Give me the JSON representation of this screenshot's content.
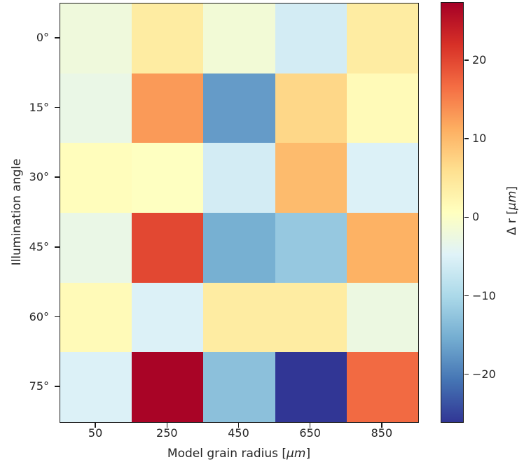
{
  "figure": {
    "background": "#ffffff",
    "spine_color": "#1a1a1a",
    "text_color": "#262626"
  },
  "chart_data": {
    "type": "heatmap",
    "title": "",
    "xlabel": "Model grain radius [μm]",
    "ylabel": "Illumination angle",
    "xlabel_parts": {
      "prefix": "Model grain radius [",
      "unit": "μm",
      "suffix": "]"
    },
    "x_categories": [
      "50",
      "250",
      "450",
      "650",
      "850"
    ],
    "y_categories": [
      "0°",
      "15°",
      "30°",
      "45°",
      "60°",
      "75°"
    ],
    "values": [
      [
        -2,
        4,
        -1.5,
        -6,
        4
      ],
      [
        -3,
        13,
        -17,
        7,
        1.5
      ],
      [
        1,
        0.5,
        -6,
        10,
        -5
      ],
      [
        -3,
        20,
        -15,
        -12,
        11
      ],
      [
        1.5,
        -5,
        4,
        4,
        -2.5
      ],
      [
        -5,
        27,
        -13,
        -26,
        17
      ]
    ],
    "vmin": -26,
    "vmax": 27.4,
    "grid": false,
    "legend": null,
    "colormap": {
      "name": "RdYlBu_r",
      "anchors": [
        "#313695",
        "#4575b4",
        "#74add1",
        "#abd9e9",
        "#e0f3f8",
        "#ffffbf",
        "#fee090",
        "#fdae61",
        "#f46d43",
        "#d73027",
        "#a50026"
      ]
    },
    "colorbar": {
      "label": "Δ r [μm]",
      "label_parts": {
        "prefix": "Δ r [",
        "unit": "μm",
        "suffix": "]"
      },
      "tick_values": [
        20,
        10,
        0,
        -10,
        -20
      ],
      "tick_labels": [
        "20",
        "10",
        "0",
        "−10",
        "−20"
      ]
    }
  }
}
